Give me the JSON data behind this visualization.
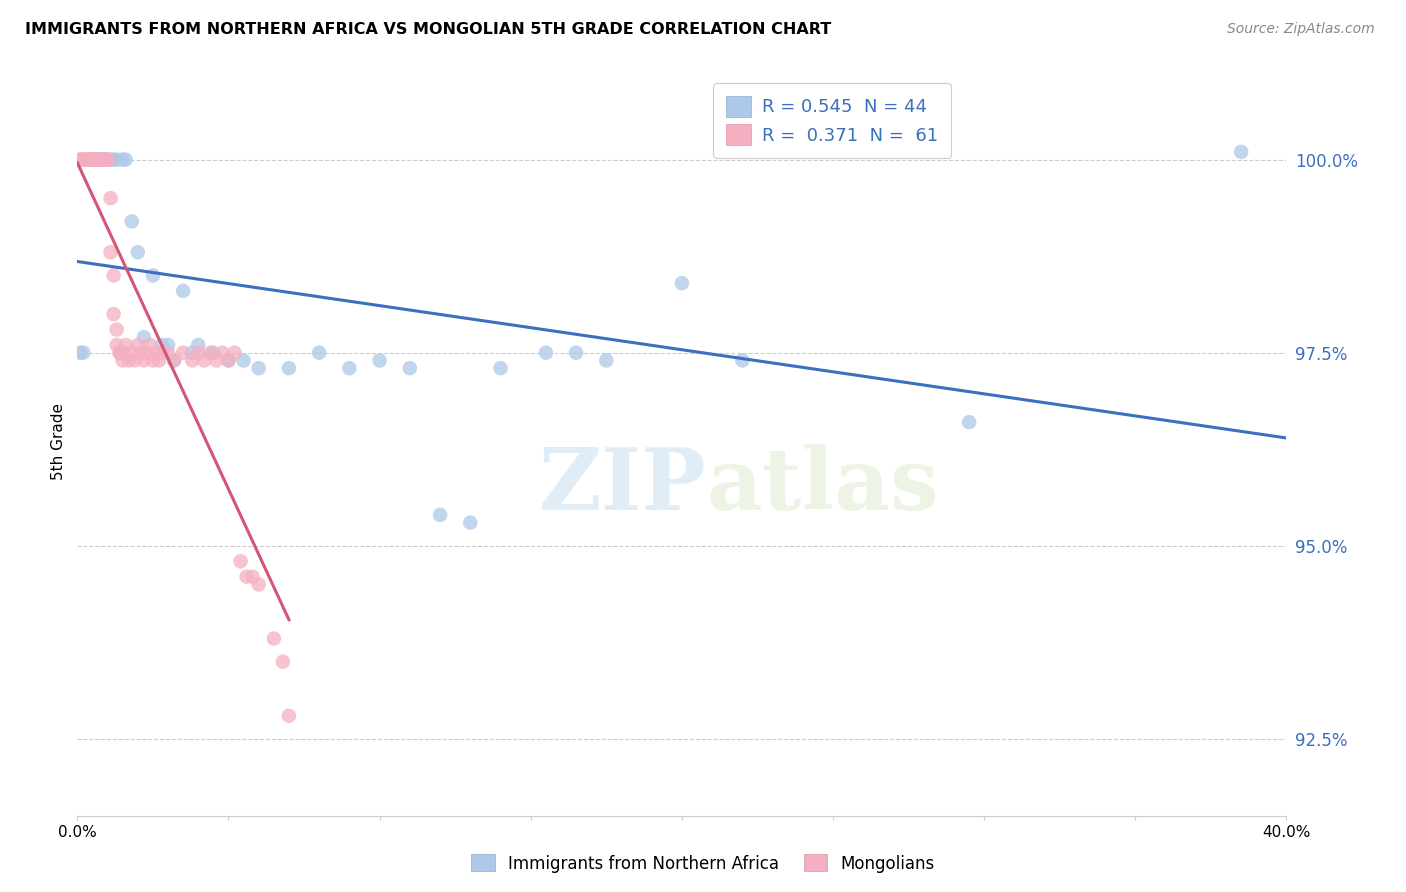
{
  "title": "IMMIGRANTS FROM NORTHERN AFRICA VS MONGOLIAN 5TH GRADE CORRELATION CHART",
  "source": "Source: ZipAtlas.com",
  "ylabel": "5th Grade",
  "yticks": [
    92.5,
    95.0,
    97.5,
    100.0
  ],
  "ytick_labels": [
    "92.5%",
    "95.0%",
    "97.5%",
    "100.0%"
  ],
  "xlim": [
    0.0,
    0.4
  ],
  "ylim": [
    91.5,
    101.2
  ],
  "blue_R": 0.545,
  "blue_N": 44,
  "pink_R": 0.371,
  "pink_N": 61,
  "blue_color": "#adc8e8",
  "pink_color": "#f4afc0",
  "blue_line_color": "#3c6fbd",
  "pink_line_color": "#d45575",
  "legend_label_blue": "Immigrants from Northern Africa",
  "legend_label_pink": "Mongolians",
  "watermark_zip": "ZIP",
  "watermark_atlas": "atlas",
  "blue_x": [
    0.001,
    0.002,
    0.003,
    0.004,
    0.005,
    0.006,
    0.007,
    0.008,
    0.009,
    0.01,
    0.011,
    0.012,
    0.013,
    0.015,
    0.016,
    0.018,
    0.02,
    0.022,
    0.025,
    0.028,
    0.03,
    0.032,
    0.035,
    0.038,
    0.04,
    0.045,
    0.05,
    0.055,
    0.06,
    0.07,
    0.08,
    0.09,
    0.1,
    0.11,
    0.12,
    0.13,
    0.14,
    0.155,
    0.165,
    0.175,
    0.2,
    0.22,
    0.295,
    0.385
  ],
  "blue_y": [
    97.5,
    97.5,
    100.0,
    100.0,
    100.0,
    100.0,
    100.0,
    100.0,
    100.0,
    100.0,
    100.0,
    100.0,
    100.0,
    100.0,
    100.0,
    99.2,
    98.8,
    97.7,
    98.5,
    97.6,
    97.6,
    97.4,
    98.3,
    97.5,
    97.6,
    97.5,
    97.4,
    97.4,
    97.3,
    97.3,
    97.5,
    97.3,
    97.4,
    97.3,
    95.4,
    95.3,
    97.3,
    97.5,
    97.5,
    97.4,
    98.4,
    97.4,
    96.6,
    100.1
  ],
  "pink_x": [
    0.001,
    0.001,
    0.002,
    0.002,
    0.003,
    0.003,
    0.004,
    0.004,
    0.005,
    0.005,
    0.006,
    0.006,
    0.007,
    0.007,
    0.008,
    0.008,
    0.009,
    0.009,
    0.01,
    0.01,
    0.011,
    0.011,
    0.012,
    0.012,
    0.013,
    0.013,
    0.014,
    0.014,
    0.015,
    0.015,
    0.016,
    0.017,
    0.018,
    0.019,
    0.02,
    0.021,
    0.022,
    0.023,
    0.024,
    0.025,
    0.026,
    0.027,
    0.028,
    0.03,
    0.032,
    0.035,
    0.038,
    0.04,
    0.042,
    0.044,
    0.046,
    0.048,
    0.05,
    0.052,
    0.054,
    0.056,
    0.058,
    0.06,
    0.065,
    0.068,
    0.07
  ],
  "pink_y": [
    100.0,
    100.0,
    100.0,
    100.0,
    100.0,
    100.0,
    100.0,
    100.0,
    100.0,
    100.0,
    100.0,
    100.0,
    100.0,
    100.0,
    100.0,
    100.0,
    100.0,
    100.0,
    100.0,
    100.0,
    99.5,
    98.8,
    98.5,
    98.0,
    97.8,
    97.6,
    97.5,
    97.5,
    97.4,
    97.5,
    97.6,
    97.4,
    97.5,
    97.4,
    97.6,
    97.5,
    97.4,
    97.5,
    97.6,
    97.4,
    97.5,
    97.4,
    97.5,
    97.5,
    97.4,
    97.5,
    97.4,
    97.5,
    97.4,
    97.5,
    97.4,
    97.5,
    97.4,
    97.5,
    94.8,
    94.6,
    94.6,
    94.5,
    93.8,
    93.5,
    92.8
  ]
}
